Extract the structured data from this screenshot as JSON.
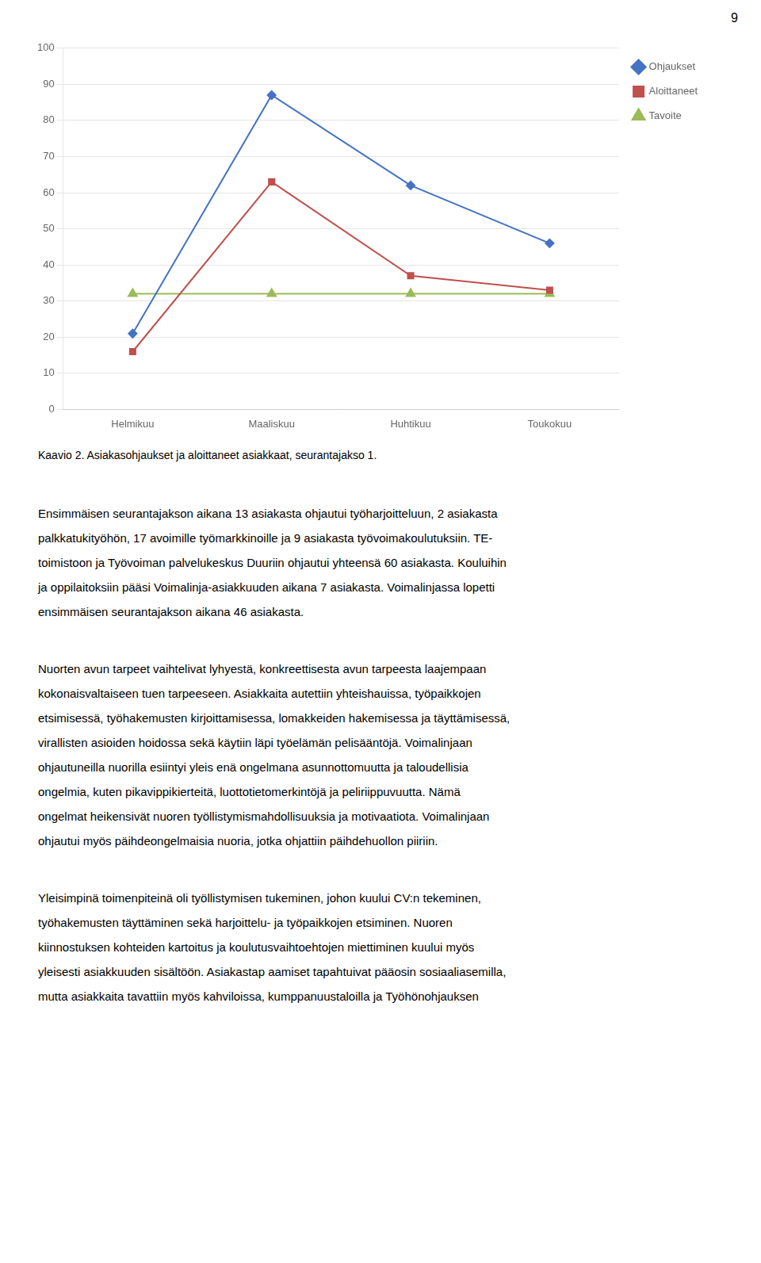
{
  "chart_data": {
    "type": "line",
    "categories": [
      "Helmikuu",
      "Maaliskuu",
      "Huhtikuu",
      "Toukokuu"
    ],
    "series": [
      {
        "name": "Ohjaukset",
        "color": "#4472C4",
        "marker": "diamond",
        "values": [
          21,
          87,
          62,
          46
        ]
      },
      {
        "name": "Aloittaneet",
        "color": "#C0504D",
        "marker": "square",
        "values": [
          16,
          63,
          37,
          33
        ]
      },
      {
        "name": "Tavoite",
        "color": "#9BBB59",
        "marker": "triangle",
        "values": [
          32,
          32,
          32,
          32
        ]
      }
    ],
    "ylim": [
      0,
      100
    ],
    "yticks": [
      0,
      10,
      20,
      30,
      40,
      50,
      60,
      70,
      80,
      90,
      100
    ],
    "grid": true,
    "legend": "right",
    "annotations": [
      [
        "9"
      ],
      [
        "Kaavio 2. Asiakasohjaukset ja aloittaneet asiakkaat, seurantajakso 1."
      ],
      [
        "Ensimmäisen seurantajakson aikana 13 asiakasta ohjautui työharjoitteluun, 2 asiakasta",
        "palkkatukityöhön, 17 avoimille työmarkkinoille ja 9 asiakasta työvoimakoulutuksiin. TE-",
        "toimistoon ja Työvoiman palvelukeskus Duuriin ohjautui yhteensä 60 asiakasta. Kouluihin",
        "ja oppilaitoksiin pääsi Voimalinja-asiakkuuden aikana 7 asiakasta. Voimalinjassa lopetti",
        "ensimmäisen seurantajakson aikana 46 asiakasta."
      ],
      [
        "Nuorten avun tarpeet vaihtelivat lyhyestä, konkreettisesta avun tarpeesta laajempaan",
        "kokonaisvaltaiseen tuen tarpeeseen. Asiakkaita autettiin yhteishauissa, työpaikkojen",
        "etsimisessä, työhakemusten kirjoittamisessa, lomakkeiden hakemisessa ja täyttämisessä,",
        "virallisten asioiden hoidossa sekä käytiin läpi työelämän pelisääntöjä. Voimalinjaan",
        "ohjautuneilla nuorilla esiintyi yleis enä ongelmana asunnottomuutta ja taloudellisia",
        "ongelmia, kuten pikavippikierteitä, luottotietomerkintöjä ja peliriippuvuutta. Nämä",
        "ongelmat heikensivät nuoren työllistymismahdollisuuksia ja motivaatiota. Voimalinjaan",
        "ohjautui myös päihdeongelmaisia nuoria, jotka ohjattiin päihdehuollon piiriin."
      ],
      [
        "Yleisimpinä toimenpiteinä oli työllistymisen tukeminen, johon kuului CV:n tekeminen,",
        "työhakemusten täyttäminen sekä harjoittelu- ja työpaikkojen etsiminen. Nuoren",
        "kiinnostuksen kohteiden kartoitus ja koulutusvaihtoehtojen miettiminen kuului myös",
        "yleisesti asiakkuuden sisältöön. Asiakastap aamiset tapahtuivat pääosin sosiaaliasemilla,",
        "mutta asiakkaita tavattiin myös kahviloissa, kumppanuustaloilla ja Työhönohjauksen"
      ]
    ]
  }
}
